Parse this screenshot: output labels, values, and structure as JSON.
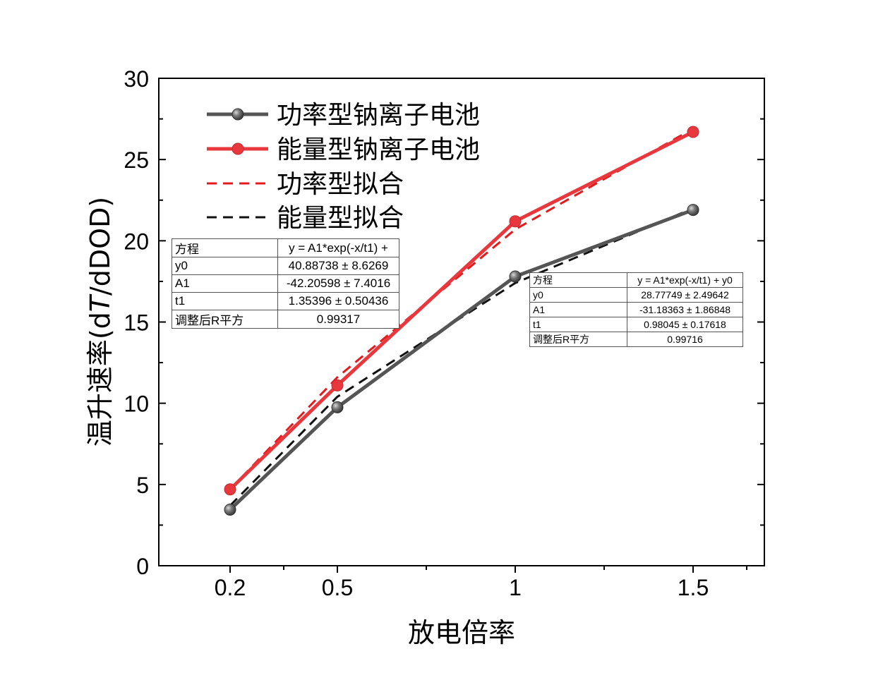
{
  "chart_data": {
    "type": "line",
    "xlabel": "放电倍率",
    "ylabel_prefix": "温升速率(d",
    "ylabel_italic": "T",
    "ylabel_suffix": "/dDOD)",
    "categories": [
      "0.2",
      "0.5",
      "1",
      "1.5"
    ],
    "ylim": [
      0,
      30
    ],
    "yticks": [
      "0",
      "5",
      "10",
      "15",
      "20",
      "25",
      "30"
    ],
    "series": [
      {
        "name": "功率型钠离子电池",
        "color": "#555555",
        "style": "solid-marker",
        "values": [
          3.45,
          9.75,
          17.8,
          21.9
        ]
      },
      {
        "name": "能量型钠离子电池",
        "color": "#e8383d",
        "style": "solid-marker",
        "values": [
          4.7,
          11.1,
          21.2,
          26.7
        ]
      },
      {
        "name": "功率型拟合",
        "color": "#e41a1c",
        "style": "dashed",
        "values": [
          4.7,
          11.6,
          20.7,
          26.9
        ]
      },
      {
        "name": "能量型拟合",
        "color": "#111111",
        "style": "dashed",
        "values": [
          3.7,
          10.4,
          17.4,
          22.0
        ]
      }
    ]
  },
  "fit_tables": [
    {
      "rows": [
        [
          "方程",
          "y = A1*exp(-x/t1) +"
        ],
        [
          "y0",
          "40.88738 ± 8.6269"
        ],
        [
          "A1",
          "-42.20598 ± 7.4016"
        ],
        [
          "t1",
          "1.35396 ± 0.50436"
        ],
        [
          "调整后R平方",
          "0.99317"
        ]
      ]
    },
    {
      "rows": [
        [
          "方程",
          "y = A1*exp(-x/t1) + y0"
        ],
        [
          "y0",
          "28.77749 ± 2.49642"
        ],
        [
          "A1",
          "-31.18363 ± 1.86848"
        ],
        [
          "t1",
          "0.98045 ± 0.17618"
        ],
        [
          "调整后R平方",
          "0.99716"
        ]
      ]
    }
  ]
}
